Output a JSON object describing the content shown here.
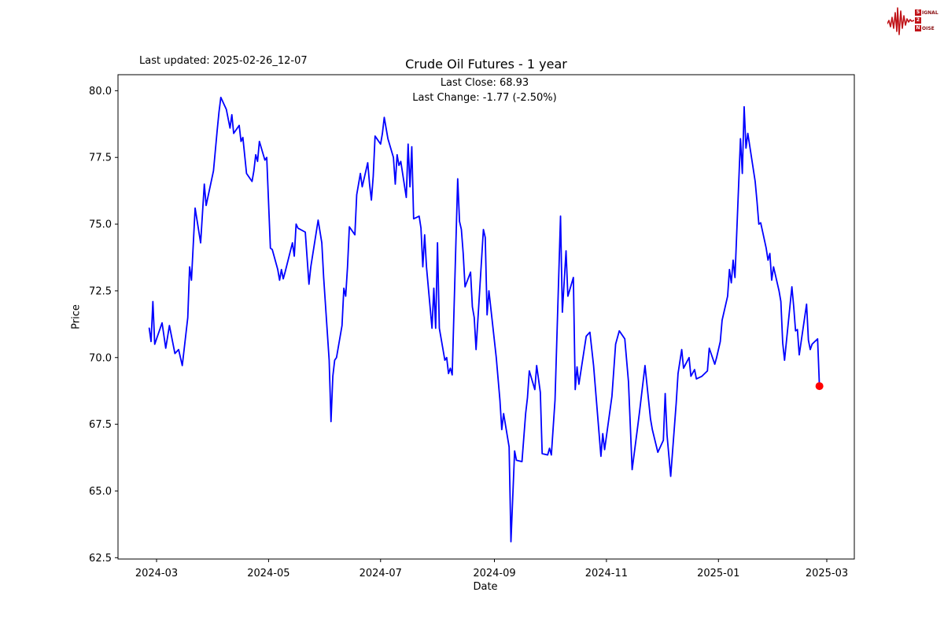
{
  "header": {
    "last_updated": "Last updated: 2025-02-26_12-07",
    "title": "Crude Oil Futures - 1 year",
    "subtitle_line1": "Last Close: 68.93",
    "subtitle_line2": "Last Change: -1.77 (-2.50%)"
  },
  "logo": {
    "line1_boxed": "S",
    "line1_rest": "IGNAL",
    "line2_boxed": "2",
    "line2_rest": "",
    "line3_boxed": "N",
    "line3_rest": "OISE",
    "accent_color": "#c01318"
  },
  "chart_data": {
    "type": "line",
    "title": "Crude Oil Futures - 1 year",
    "xlabel": "Date",
    "ylabel": "Price",
    "line_color": "#0000ff",
    "last_point_color": "#ff0000",
    "axis_color": "#000000",
    "grid": false,
    "y_ticks": [
      62.5,
      65.0,
      67.5,
      70.0,
      72.5,
      75.0,
      77.5,
      80.0
    ],
    "ylim": [
      62.45,
      80.6
    ],
    "x_ticks": [
      "2024-03",
      "2024-05",
      "2024-07",
      "2024-09",
      "2024-11",
      "2025-01",
      "2025-03"
    ],
    "xlim": [
      "2024-02-09",
      "2025-03-16"
    ],
    "last_close": 68.93,
    "last_change": -1.77,
    "last_change_pct": -2.5,
    "series": [
      {
        "name": "Price",
        "points": [
          [
            "2024-02-26",
            71.1
          ],
          [
            "2024-02-27",
            70.6
          ],
          [
            "2024-02-28",
            72.1
          ],
          [
            "2024-02-29",
            70.5
          ],
          [
            "2024-03-04",
            71.3
          ],
          [
            "2024-03-06",
            70.35
          ],
          [
            "2024-03-08",
            71.2
          ],
          [
            "2024-03-11",
            70.15
          ],
          [
            "2024-03-13",
            70.3
          ],
          [
            "2024-03-15",
            69.7
          ],
          [
            "2024-03-18",
            71.5
          ],
          [
            "2024-03-19",
            73.4
          ],
          [
            "2024-03-20",
            72.9
          ],
          [
            "2024-03-22",
            75.6
          ],
          [
            "2024-03-25",
            74.3
          ],
          [
            "2024-03-27",
            76.5
          ],
          [
            "2024-03-28",
            75.7
          ],
          [
            "2024-04-01",
            77.0
          ],
          [
            "2024-04-03",
            78.5
          ],
          [
            "2024-04-04",
            79.2
          ],
          [
            "2024-04-05",
            79.75
          ],
          [
            "2024-04-08",
            79.3
          ],
          [
            "2024-04-10",
            78.6
          ],
          [
            "2024-04-11",
            79.1
          ],
          [
            "2024-04-12",
            78.4
          ],
          [
            "2024-04-15",
            78.7
          ],
          [
            "2024-04-16",
            78.1
          ],
          [
            "2024-04-17",
            78.25
          ],
          [
            "2024-04-19",
            76.9
          ],
          [
            "2024-04-22",
            76.6
          ],
          [
            "2024-04-23",
            77.0
          ],
          [
            "2024-04-24",
            77.6
          ],
          [
            "2024-04-25",
            77.35
          ],
          [
            "2024-04-26",
            78.1
          ],
          [
            "2024-04-29",
            77.4
          ],
          [
            "2024-04-30",
            77.5
          ],
          [
            "2024-05-02",
            74.1
          ],
          [
            "2024-05-03",
            74.05
          ],
          [
            "2024-05-06",
            73.3
          ],
          [
            "2024-05-07",
            72.9
          ],
          [
            "2024-05-08",
            73.3
          ],
          [
            "2024-05-09",
            72.95
          ],
          [
            "2024-05-10",
            73.2
          ],
          [
            "2024-05-14",
            74.3
          ],
          [
            "2024-05-15",
            73.8
          ],
          [
            "2024-05-16",
            75.0
          ],
          [
            "2024-05-17",
            74.85
          ],
          [
            "2024-05-21",
            74.7
          ],
          [
            "2024-05-23",
            72.75
          ],
          [
            "2024-05-24",
            73.4
          ],
          [
            "2024-05-28",
            75.15
          ],
          [
            "2024-05-30",
            74.3
          ],
          [
            "2024-05-31",
            73.0
          ],
          [
            "2024-06-03",
            69.9
          ],
          [
            "2024-06-04",
            67.6
          ],
          [
            "2024-06-05",
            69.3
          ],
          [
            "2024-06-06",
            69.9
          ],
          [
            "2024-06-07",
            70.0
          ],
          [
            "2024-06-10",
            71.2
          ],
          [
            "2024-06-11",
            72.6
          ],
          [
            "2024-06-12",
            72.3
          ],
          [
            "2024-06-13",
            73.4
          ],
          [
            "2024-06-14",
            74.9
          ],
          [
            "2024-06-17",
            74.6
          ],
          [
            "2024-06-18",
            76.1
          ],
          [
            "2024-06-20",
            76.9
          ],
          [
            "2024-06-21",
            76.4
          ],
          [
            "2024-06-24",
            77.3
          ],
          [
            "2024-06-25",
            76.5
          ],
          [
            "2024-06-26",
            75.9
          ],
          [
            "2024-06-27",
            76.8
          ],
          [
            "2024-06-28",
            78.3
          ],
          [
            "2024-07-01",
            78.0
          ],
          [
            "2024-07-02",
            78.4
          ],
          [
            "2024-07-03",
            79.0
          ],
          [
            "2024-07-05",
            78.2
          ],
          [
            "2024-07-08",
            77.5
          ],
          [
            "2024-07-09",
            76.5
          ],
          [
            "2024-07-10",
            77.6
          ],
          [
            "2024-07-11",
            77.2
          ],
          [
            "2024-07-12",
            77.35
          ],
          [
            "2024-07-15",
            76.0
          ],
          [
            "2024-07-16",
            78.0
          ],
          [
            "2024-07-17",
            76.4
          ],
          [
            "2024-07-18",
            77.9
          ],
          [
            "2024-07-19",
            75.2
          ],
          [
            "2024-07-22",
            75.3
          ],
          [
            "2024-07-23",
            74.85
          ],
          [
            "2024-07-24",
            73.4
          ],
          [
            "2024-07-25",
            74.6
          ],
          [
            "2024-07-26",
            73.4
          ],
          [
            "2024-07-29",
            71.1
          ],
          [
            "2024-07-30",
            72.6
          ],
          [
            "2024-07-31",
            71.1
          ],
          [
            "2024-08-01",
            74.3
          ],
          [
            "2024-08-02",
            71.1
          ],
          [
            "2024-08-05",
            69.9
          ],
          [
            "2024-08-06",
            70.0
          ],
          [
            "2024-08-07",
            69.4
          ],
          [
            "2024-08-08",
            69.6
          ],
          [
            "2024-08-09",
            69.35
          ],
          [
            "2024-08-12",
            76.7
          ],
          [
            "2024-08-13",
            75.1
          ],
          [
            "2024-08-14",
            74.8
          ],
          [
            "2024-08-15",
            73.9
          ],
          [
            "2024-08-16",
            72.65
          ],
          [
            "2024-08-19",
            73.2
          ],
          [
            "2024-08-20",
            71.9
          ],
          [
            "2024-08-21",
            71.5
          ],
          [
            "2024-08-22",
            70.3
          ],
          [
            "2024-08-26",
            74.8
          ],
          [
            "2024-08-27",
            74.5
          ],
          [
            "2024-08-28",
            71.6
          ],
          [
            "2024-08-29",
            72.5
          ],
          [
            "2024-09-02",
            70.0
          ],
          [
            "2024-09-04",
            68.4
          ],
          [
            "2024-09-05",
            67.3
          ],
          [
            "2024-09-06",
            67.9
          ],
          [
            "2024-09-09",
            66.65
          ],
          [
            "2024-09-10",
            63.1
          ],
          [
            "2024-09-12",
            66.5
          ],
          [
            "2024-09-13",
            66.15
          ],
          [
            "2024-09-16",
            66.1
          ],
          [
            "2024-09-18",
            67.9
          ],
          [
            "2024-09-19",
            68.5
          ],
          [
            "2024-09-20",
            69.5
          ],
          [
            "2024-09-23",
            68.8
          ],
          [
            "2024-09-24",
            69.7
          ],
          [
            "2024-09-26",
            68.7
          ],
          [
            "2024-09-27",
            66.4
          ],
          [
            "2024-09-30",
            66.35
          ],
          [
            "2024-10-01",
            66.6
          ],
          [
            "2024-10-02",
            66.35
          ],
          [
            "2024-10-04",
            68.4
          ],
          [
            "2024-10-07",
            75.3
          ],
          [
            "2024-10-08",
            71.7
          ],
          [
            "2024-10-10",
            74.0
          ],
          [
            "2024-10-11",
            72.3
          ],
          [
            "2024-10-14",
            73.0
          ],
          [
            "2024-10-15",
            68.8
          ],
          [
            "2024-10-16",
            69.65
          ],
          [
            "2024-10-17",
            69.0
          ],
          [
            "2024-10-21",
            70.8
          ],
          [
            "2024-10-23",
            70.95
          ],
          [
            "2024-10-25",
            69.7
          ],
          [
            "2024-10-29",
            66.3
          ],
          [
            "2024-10-30",
            67.15
          ],
          [
            "2024-10-31",
            66.55
          ],
          [
            "2024-11-04",
            68.55
          ],
          [
            "2024-11-06",
            70.5
          ],
          [
            "2024-11-08",
            71.0
          ],
          [
            "2024-11-11",
            70.7
          ],
          [
            "2024-11-13",
            69.1
          ],
          [
            "2024-11-15",
            65.8
          ],
          [
            "2024-11-18",
            67.4
          ],
          [
            "2024-11-19",
            67.95
          ],
          [
            "2024-11-22",
            69.7
          ],
          [
            "2024-11-25",
            67.7
          ],
          [
            "2024-11-26",
            67.3
          ],
          [
            "2024-11-29",
            66.45
          ],
          [
            "2024-12-02",
            66.9
          ],
          [
            "2024-12-03",
            68.65
          ],
          [
            "2024-12-04",
            67.1
          ],
          [
            "2024-12-06",
            65.55
          ],
          [
            "2024-12-09",
            68.3
          ],
          [
            "2024-12-10",
            69.4
          ],
          [
            "2024-12-12",
            70.3
          ],
          [
            "2024-12-13",
            69.6
          ],
          [
            "2024-12-16",
            70.0
          ],
          [
            "2024-12-17",
            69.3
          ],
          [
            "2024-12-19",
            69.55
          ],
          [
            "2024-12-20",
            69.2
          ],
          [
            "2024-12-23",
            69.3
          ],
          [
            "2024-12-26",
            69.5
          ],
          [
            "2024-12-27",
            70.35
          ],
          [
            "2024-12-30",
            69.75
          ],
          [
            "2024-12-31",
            70.0
          ],
          [
            "2025-01-02",
            70.6
          ],
          [
            "2025-01-03",
            71.4
          ],
          [
            "2025-01-06",
            72.3
          ],
          [
            "2025-01-07",
            73.3
          ],
          [
            "2025-01-08",
            72.8
          ],
          [
            "2025-01-09",
            73.65
          ],
          [
            "2025-01-10",
            73.0
          ],
          [
            "2025-01-13",
            78.2
          ],
          [
            "2025-01-14",
            76.9
          ],
          [
            "2025-01-15",
            79.4
          ],
          [
            "2025-01-16",
            77.85
          ],
          [
            "2025-01-17",
            78.4
          ],
          [
            "2025-01-21",
            76.6
          ],
          [
            "2025-01-22",
            75.85
          ],
          [
            "2025-01-23",
            75.0
          ],
          [
            "2025-01-24",
            75.05
          ],
          [
            "2025-01-27",
            74.1
          ],
          [
            "2025-01-28",
            73.65
          ],
          [
            "2025-01-29",
            73.9
          ],
          [
            "2025-01-30",
            72.9
          ],
          [
            "2025-01-31",
            73.4
          ],
          [
            "2025-02-03",
            72.5
          ],
          [
            "2025-02-04",
            72.1
          ],
          [
            "2025-02-05",
            70.55
          ],
          [
            "2025-02-06",
            69.9
          ],
          [
            "2025-02-10",
            72.65
          ],
          [
            "2025-02-11",
            71.9
          ],
          [
            "2025-02-12",
            71.0
          ],
          [
            "2025-02-13",
            71.05
          ],
          [
            "2025-02-14",
            70.1
          ],
          [
            "2025-02-18",
            72.0
          ],
          [
            "2025-02-19",
            70.65
          ],
          [
            "2025-02-20",
            70.3
          ],
          [
            "2025-02-21",
            70.5
          ],
          [
            "2025-02-24",
            70.7
          ],
          [
            "2025-02-25",
            68.93
          ]
        ]
      }
    ]
  }
}
